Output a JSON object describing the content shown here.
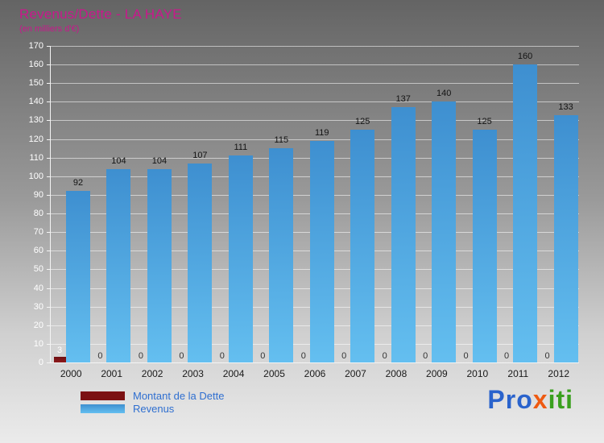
{
  "chart": {
    "title": "Revenus/Dette - LA HAYE",
    "subtitle": "(en milliers d'€)",
    "title_color": "#c9188c"
  },
  "chart_data": {
    "type": "bar",
    "title": "Revenus/Dette - LA HAYE",
    "subtitle": "(en milliers d'€)",
    "categories": [
      "2000",
      "2001",
      "2002",
      "2003",
      "2004",
      "2005",
      "2006",
      "2007",
      "2008",
      "2009",
      "2010",
      "2011",
      "2012"
    ],
    "series": [
      {
        "name": "Montant de la Dette",
        "color": "#7b1113",
        "values": [
          3,
          0,
          0,
          0,
          0,
          0,
          0,
          0,
          0,
          0,
          0,
          0,
          0
        ]
      },
      {
        "name": "Revenus",
        "color": "#4aa0dc",
        "values": [
          92,
          104,
          104,
          107,
          111,
          115,
          119,
          125,
          137,
          140,
          125,
          160,
          133
        ]
      }
    ],
    "ylim": [
      0,
      170
    ],
    "ytick_step": 10,
    "grid": true,
    "value_labels": true,
    "legend_position": "bottom-left"
  },
  "logo": {
    "letters": [
      {
        "text": "Pro",
        "color": "#2a63cc"
      },
      {
        "text": "x",
        "color": "#ee5a12"
      },
      {
        "text": "iti",
        "color": "#3aa01e"
      }
    ]
  }
}
